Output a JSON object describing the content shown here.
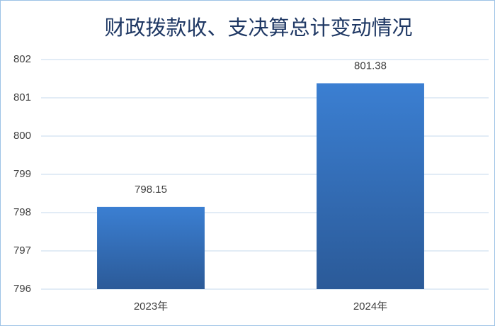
{
  "chart_data": {
    "type": "bar",
    "title": "财政拨款收、支决算总计变动情况",
    "categories": [
      "2023年",
      "2024年"
    ],
    "values": [
      798.15,
      801.38
    ],
    "ylim": [
      796,
      802
    ],
    "yticks": [
      796,
      797,
      798,
      799,
      800,
      801,
      802
    ],
    "grid": true
  }
}
